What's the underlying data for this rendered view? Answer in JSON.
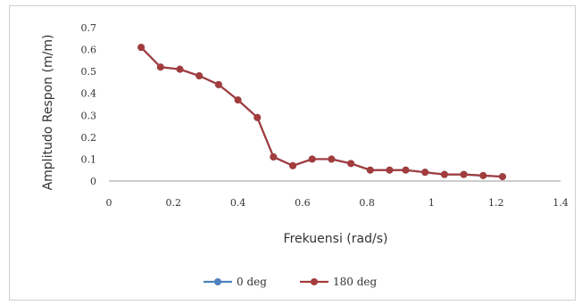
{
  "chart_data": {
    "type": "line",
    "title": "",
    "xlabel": "Frekuensi (rad/s)",
    "ylabel": "Amplitudo Respon (m/m)",
    "xlim": [
      0,
      1.4
    ],
    "ylim": [
      0,
      0.7
    ],
    "x_ticks": [
      "0",
      "0.2",
      "0.4",
      "0.6",
      "0.8",
      "1",
      "1.2",
      "1.4"
    ],
    "y_ticks": [
      "0",
      "0.1",
      "0.2",
      "0.3",
      "0.4",
      "0.5",
      "0.6",
      "0.7"
    ],
    "legend_position": "bottom",
    "grid": false,
    "series": [
      {
        "name": "0 deg",
        "color": "#4f81bd",
        "x": [
          0.1,
          0.16,
          0.22,
          0.28,
          0.34,
          0.4,
          0.46,
          0.51,
          0.57,
          0.63,
          0.69,
          0.75,
          0.81,
          0.87,
          0.92,
          0.98,
          1.04,
          1.1,
          1.16,
          1.22
        ],
        "y": [
          0.61,
          0.52,
          0.51,
          0.48,
          0.44,
          0.37,
          0.29,
          0.11,
          0.07,
          0.1,
          0.1,
          0.08,
          0.05,
          0.05,
          0.05,
          0.04,
          0.03,
          0.03,
          0.025,
          0.02
        ]
      },
      {
        "name": "180 deg",
        "color": "#a33c3c",
        "x": [
          0.1,
          0.16,
          0.22,
          0.28,
          0.34,
          0.4,
          0.46,
          0.51,
          0.57,
          0.63,
          0.69,
          0.75,
          0.81,
          0.87,
          0.92,
          0.98,
          1.04,
          1.1,
          1.16,
          1.22
        ],
        "y": [
          0.61,
          0.52,
          0.51,
          0.48,
          0.44,
          0.37,
          0.29,
          0.11,
          0.07,
          0.1,
          0.1,
          0.08,
          0.05,
          0.05,
          0.05,
          0.04,
          0.03,
          0.03,
          0.025,
          0.02
        ]
      }
    ]
  }
}
